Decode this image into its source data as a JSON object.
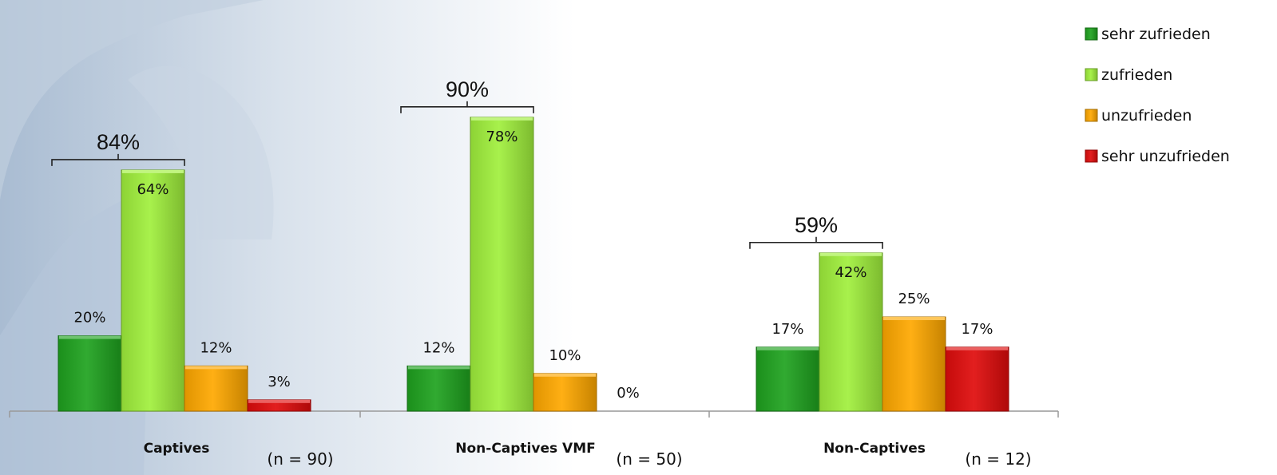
{
  "chart_data": {
    "type": "bar",
    "title": "",
    "xlabel": "",
    "ylabel": "",
    "ylim": [
      0,
      90
    ],
    "grid": false,
    "legend_position": "top-right",
    "categories": [
      {
        "name": "Captives",
        "n_label": "(n = 90)",
        "bracket_total": "84%"
      },
      {
        "name": "Non-Captives VMF",
        "n_label": "(n = 50)",
        "bracket_total": "90%"
      },
      {
        "name": "Non-Captives",
        "n_label": "(n = 12)",
        "bracket_total": "59%"
      }
    ],
    "series": [
      {
        "name": "sehr zufrieden",
        "color": "#1fa31f",
        "values": [
          20,
          12,
          17
        ]
      },
      {
        "name": "zufrieden",
        "color": "#a0f03c",
        "values": [
          64,
          78,
          42
        ]
      },
      {
        "name": "unzufrieden",
        "color": "#ffa800",
        "values": [
          12,
          10,
          25
        ]
      },
      {
        "name": "sehr unzufrieden",
        "color": "#e00c0c",
        "values": [
          3,
          0,
          17
        ]
      }
    ]
  }
}
